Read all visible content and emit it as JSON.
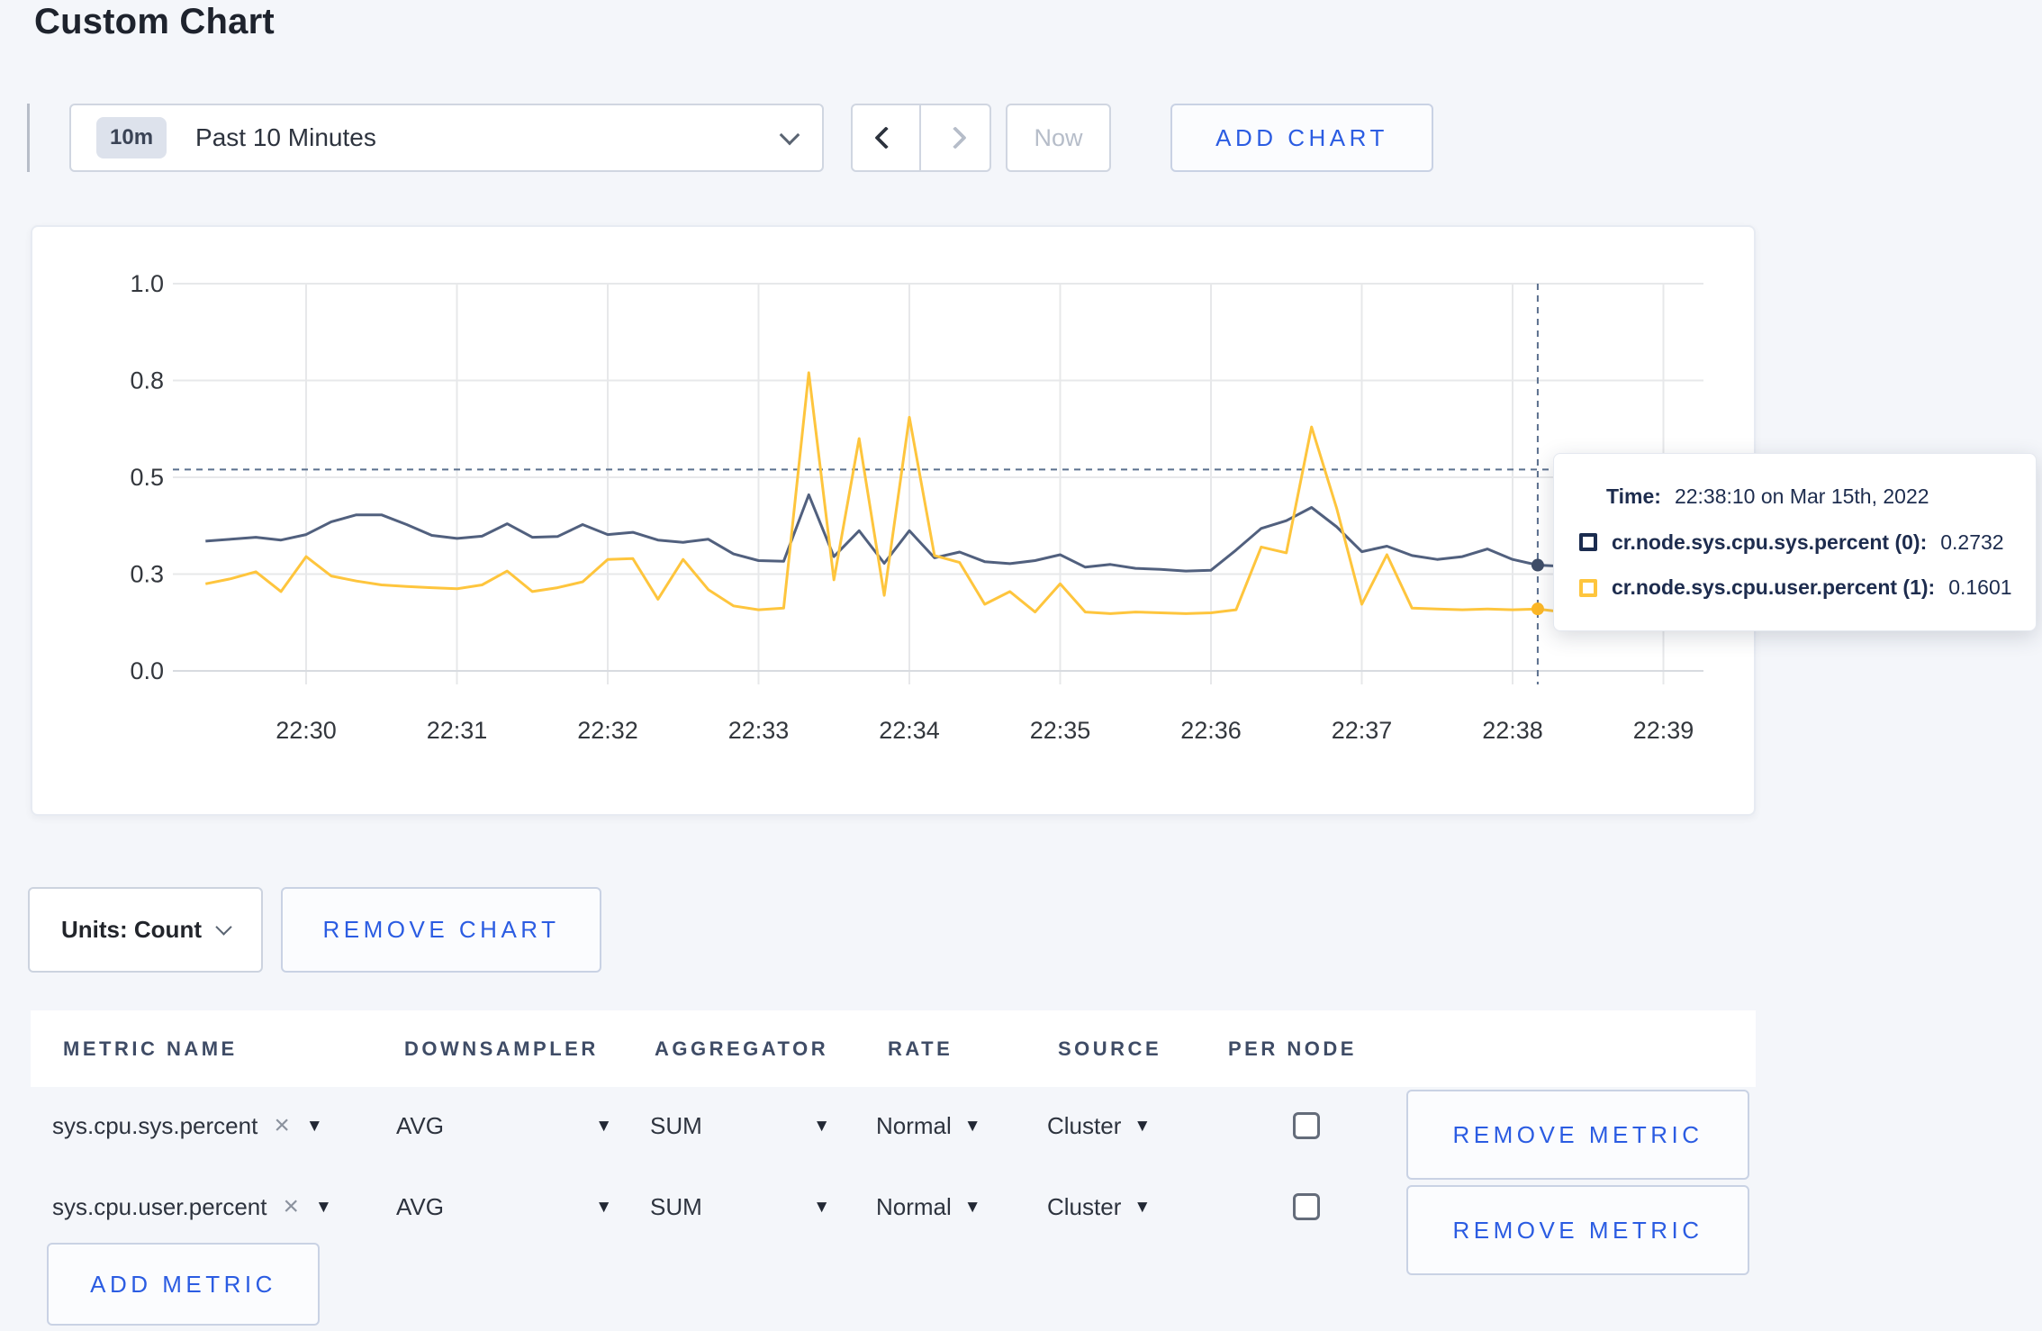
{
  "page_title": "Custom Chart",
  "toolbar": {
    "time_badge": "10m",
    "time_label": "Past 10 Minutes",
    "now_label": "Now",
    "add_chart_label": "ADD CHART"
  },
  "chart_controls": {
    "units_label": "Units: Count",
    "remove_chart_label": "REMOVE CHART"
  },
  "tooltip": {
    "time_label": "Time:",
    "time_value": "22:38:10 on Mar 15th, 2022",
    "series": [
      {
        "label": "cr.node.sys.cpu.sys.percent (0):",
        "value": "0.2732",
        "swatch_color": "#1b2c4f"
      },
      {
        "label": "cr.node.sys.cpu.user.percent (1):",
        "value": "0.1601",
        "swatch_color": "#fec53d"
      }
    ]
  },
  "chart_data": {
    "type": "line",
    "title": "",
    "xlabel": "",
    "ylabel": "",
    "ylim": [
      0,
      1
    ],
    "grid": true,
    "legend_position": "tooltip",
    "x_ticks": [
      "22:30",
      "22:31",
      "22:32",
      "22:33",
      "22:34",
      "22:35",
      "22:36",
      "22:37",
      "22:38",
      "22:39"
    ],
    "y_ticks": [
      {
        "value": 0,
        "label": "0.0"
      },
      {
        "value": 0.25,
        "label": "0.3"
      },
      {
        "value": 0.5,
        "label": "0.5"
      },
      {
        "value": 0.75,
        "label": "0.8"
      },
      {
        "value": 1,
        "label": "1.0"
      }
    ],
    "x_start_time": "22:29:20",
    "x_start_offset_min": -0.6667,
    "sample_interval_sec": 10,
    "series": [
      {
        "name": "cr.node.sys.cpu.sys.percent",
        "color": "#51607e",
        "dot_color": "#3f4d68",
        "values": [
          0.335,
          0.34,
          0.345,
          0.338,
          0.352,
          0.385,
          0.403,
          0.403,
          0.378,
          0.35,
          0.342,
          0.348,
          0.38,
          0.345,
          0.347,
          0.378,
          0.352,
          0.358,
          0.338,
          0.332,
          0.34,
          0.302,
          0.285,
          0.283,
          0.455,
          0.295,
          0.362,
          0.278,
          0.362,
          0.292,
          0.307,
          0.282,
          0.277,
          0.285,
          0.3,
          0.268,
          0.275,
          0.265,
          0.262,
          0.258,
          0.26,
          0.312,
          0.368,
          0.388,
          0.422,
          0.372,
          0.308,
          0.322,
          0.298,
          0.288,
          0.295,
          0.315,
          0.288,
          0.2732,
          0.27,
          0.263,
          0.272,
          0.285,
          0.275,
          0.278
        ]
      },
      {
        "name": "cr.node.sys.cpu.user.percent",
        "color": "#fec53d",
        "dot_color": "#fdb827",
        "values": [
          0.225,
          0.238,
          0.256,
          0.205,
          0.295,
          0.245,
          0.232,
          0.222,
          0.218,
          0.215,
          0.212,
          0.222,
          0.258,
          0.205,
          0.215,
          0.23,
          0.288,
          0.29,
          0.185,
          0.288,
          0.21,
          0.168,
          0.158,
          0.162,
          0.77,
          0.235,
          0.6,
          0.195,
          0.655,
          0.298,
          0.28,
          0.172,
          0.205,
          0.152,
          0.225,
          0.152,
          0.148,
          0.152,
          0.15,
          0.148,
          0.15,
          0.158,
          0.32,
          0.305,
          0.63,
          0.42,
          0.172,
          0.3,
          0.162,
          0.16,
          0.158,
          0.16,
          0.158,
          0.1601,
          0.152,
          0.143,
          0.148,
          0.285,
          0.262,
          0.228
        ]
      }
    ],
    "crosshair": {
      "time": "22:38:10",
      "x_min_offset": 8.1667,
      "index": 53,
      "hline_value": 0.52
    }
  },
  "metrics_table": {
    "headers": [
      "METRIC NAME",
      "DOWNSAMPLER",
      "AGGREGATOR",
      "RATE",
      "SOURCE",
      "PER NODE"
    ],
    "rows": [
      {
        "metric": "sys.cpu.sys.percent",
        "downsampler": "AVG",
        "aggregator": "SUM",
        "rate": "Normal",
        "source": "Cluster",
        "per_node_checked": false,
        "remove_label": "REMOVE METRIC"
      },
      {
        "metric": "sys.cpu.user.percent",
        "downsampler": "AVG",
        "aggregator": "SUM",
        "rate": "Normal",
        "source": "Cluster",
        "per_node_checked": false,
        "remove_label": "REMOVE METRIC"
      }
    ],
    "add_metric_label": "ADD METRIC"
  }
}
